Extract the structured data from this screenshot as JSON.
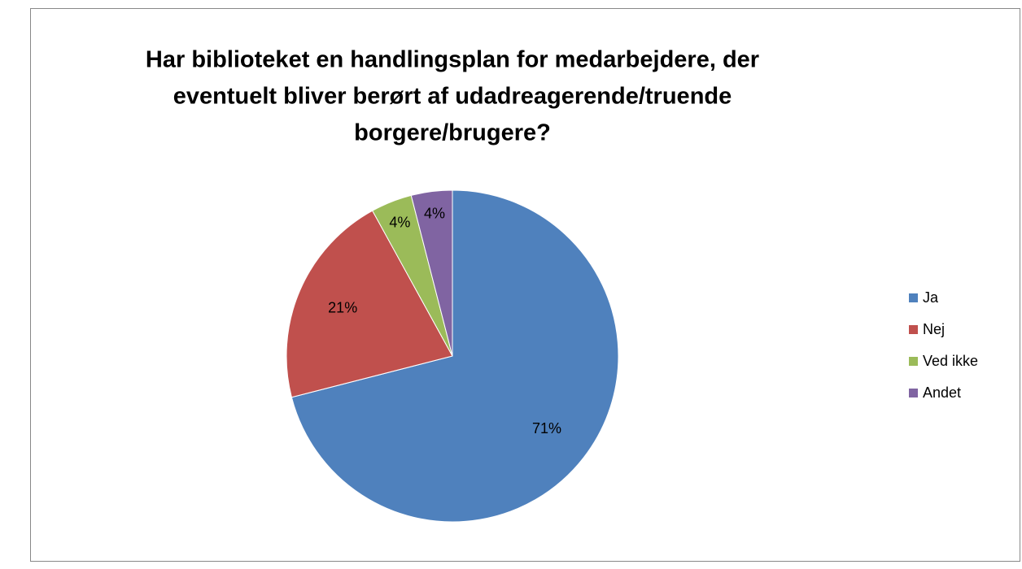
{
  "chart_data": {
    "type": "pie",
    "title": [
      "Har biblioteket en handlingsplan for medarbejdere, der",
      "eventuelt bliver berørt af udadreagerende/truende",
      "borgere/brugere?"
    ],
    "categories": [
      "Ja",
      "Nej",
      "Ved ikke",
      "Andet"
    ],
    "values": [
      71,
      21,
      4,
      4
    ],
    "value_labels": [
      "71%",
      "21%",
      "4%",
      "4%"
    ],
    "colors": [
      "#4f81bd",
      "#c0504d",
      "#9bbb59",
      "#8064a2"
    ],
    "legend": "right"
  }
}
